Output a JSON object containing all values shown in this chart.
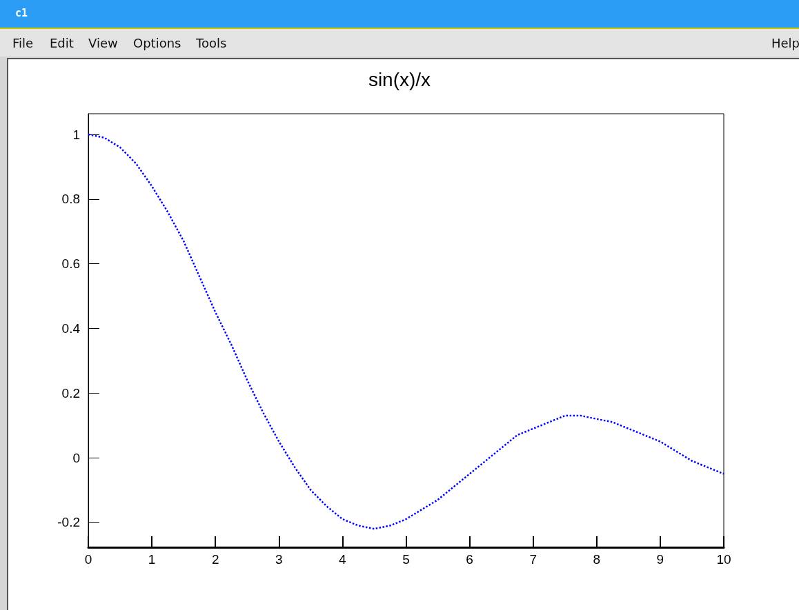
{
  "chart_data": {
    "type": "line",
    "title": "sin(x)/x",
    "annotations": [
      "c1",
      "File",
      "Edit",
      "View",
      "Options",
      "Tools",
      "Help"
    ],
    "x": [
      0,
      0.25,
      0.5,
      0.75,
      1,
      1.25,
      1.5,
      1.75,
      2,
      2.25,
      2.5,
      2.75,
      3,
      3.25,
      3.5,
      3.75,
      4,
      4.25,
      4.5,
      4.75,
      5,
      5.25,
      5.5,
      5.75,
      6,
      6.25,
      6.5,
      6.75,
      7,
      7.25,
      7.5,
      7.75,
      8,
      8.25,
      8.5,
      8.75,
      9,
      9.25,
      9.5,
      9.75,
      10
    ],
    "series": [
      {
        "color": "#0000ff",
        "values": [
          1,
          0.99,
          0.96,
          0.91,
          0.84,
          0.76,
          0.67,
          0.56,
          0.45,
          0.35,
          0.24,
          0.14,
          0.05,
          -0.03,
          -0.1,
          -0.15,
          -0.19,
          -0.21,
          -0.22,
          -0.21,
          -0.19,
          -0.16,
          -0.13,
          -0.09,
          -0.05,
          -0.01,
          0.03,
          0.07,
          0.09,
          0.11,
          0.13,
          0.13,
          0.12,
          0.11,
          0.09,
          0.07,
          0.05,
          0.02,
          -0.01,
          -0.03,
          -0.05
        ]
      }
    ],
    "xlim": [
      0,
      10
    ],
    "xticks": [
      0,
      1,
      2,
      3,
      4,
      5,
      6,
      7,
      8,
      9,
      10
    ],
    "ylim": [
      -0.277,
      1.064
    ],
    "yticks": [
      -0.2,
      0,
      0.2,
      0.4,
      0.6,
      0.8,
      1
    ],
    "grid": false,
    "marker": "none",
    "line_style": "dotted"
  }
}
